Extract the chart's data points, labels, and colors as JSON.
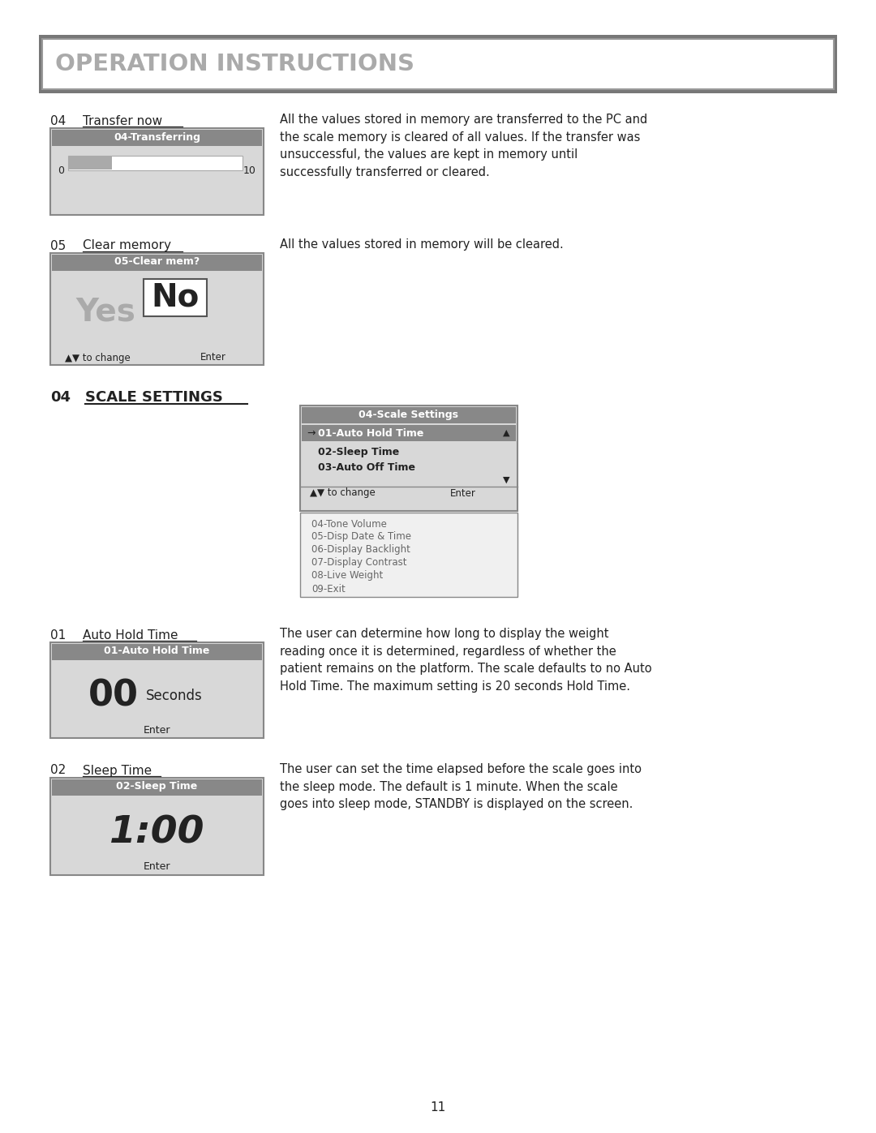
{
  "page_bg": "#ffffff",
  "title_text": "OPERATION INSTRUCTIONS",
  "title_text_color": "#aaaaaa",
  "title_font_size": 21,
  "header_bg": "#888888",
  "header_text_color": "#ffffff",
  "box_bg": "#d8d8d8",
  "box_border": "#888888",
  "highlight_bg": "#888888",
  "dark_text": "#222222",
  "gray_text": "#666666",
  "section04_desc": "All the values stored in memory are transferred to the PC and\nthe scale memory is cleared of all values. If the transfer was\nunsuccessful, the values are kept in memory until\nsuccessfully transferred or cleared.",
  "section05_desc": "All the values stored in memory will be cleared.",
  "section01_desc": "The user can determine how long to display the weight\nreading once it is determined, regardless of whether the\npatient remains on the platform. The scale defaults to no Auto\nHold Time. The maximum setting is 20 seconds Hold Time.",
  "section02_desc": "The user can set the time elapsed before the scale goes into\nthe sleep mode. The default is 1 minute. When the scale\ngoes into sleep mode, STANDBY is displayed on the screen.",
  "submenu_items": [
    "04-Tone Volume",
    "05-Disp Date & Time",
    "06-Display Backlight",
    "07-Display Contrast",
    "08-Live Weight",
    "09-Exit"
  ],
  "page_number": "11"
}
